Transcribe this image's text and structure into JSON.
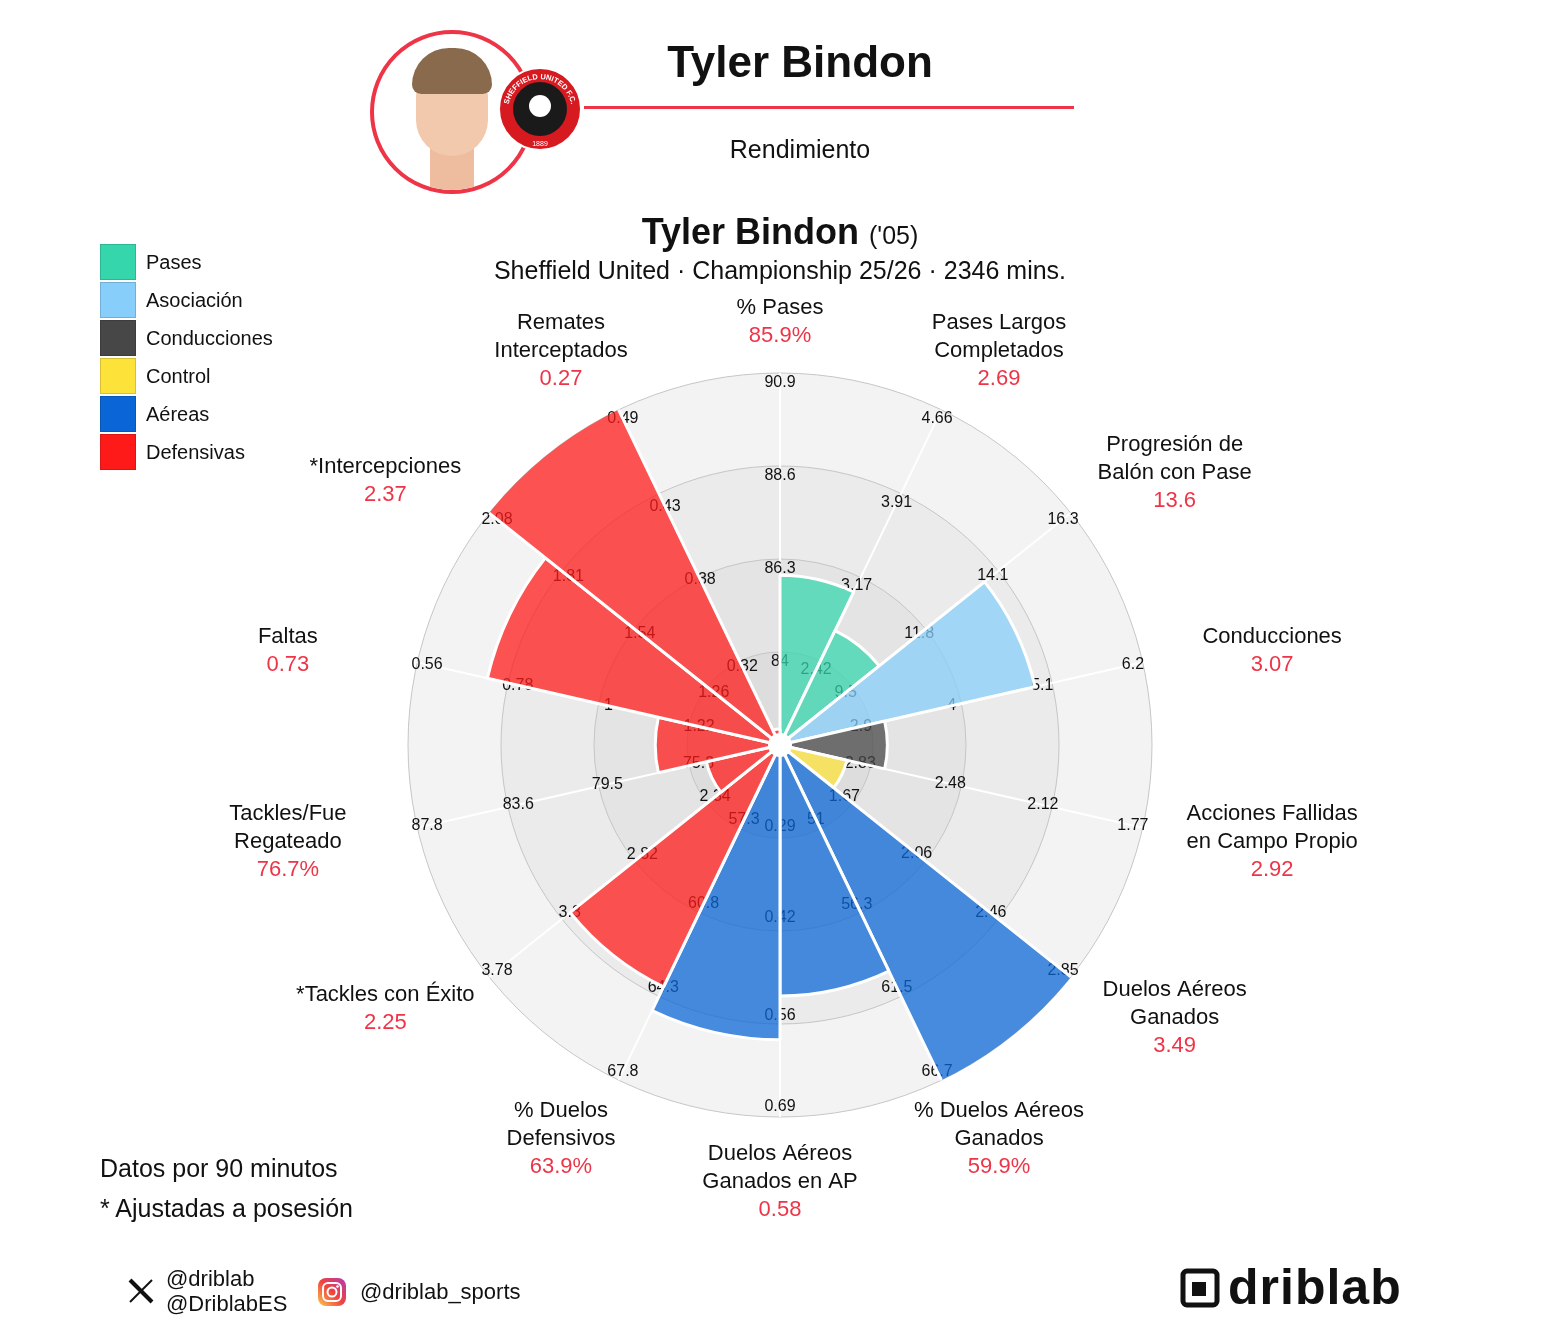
{
  "header": {
    "name": "Tyler Bindon",
    "subtitle": "Rendimiento",
    "badge": "SHEFFIELD UNITED F.C.",
    "badge_year": "1889"
  },
  "chart_data": {
    "type": "polarArea",
    "title": "Tyler Bindon",
    "title_note": "('05)",
    "subtitle": "Sheffield United · Championship 25/26 · 2346 mins.",
    "legend": "top-left",
    "groups": [
      {
        "name": "Pases",
        "color": "#36d6ad"
      },
      {
        "name": "Asociación",
        "color": "#87cefa"
      },
      {
        "name": "Conducciones",
        "color": "#474747"
      },
      {
        "name": "Control",
        "color": "#fde23a"
      },
      {
        "name": "Aéreas",
        "color": "#0a66d6"
      },
      {
        "name": "Defensivas",
        "color": "#ff1a1a"
      }
    ],
    "categories": [
      "% Pases",
      "Pases Largos Completados",
      "Progresión de Balón con Pase",
      "Conducciones",
      "Acciones Fallidas en Campo Propio",
      "Duelos Aéreos Ganados",
      "% Duelos Aéreos Ganados",
      "Duelos Aéreos Ganados en AP",
      "% Duelos Defensivos",
      "*Tackles con Éxito",
      "Tackles/Fue Regateado",
      "Faltas",
      "*Intercepciones",
      "Remates Interceptados"
    ],
    "category_groups": [
      "Pases",
      "Pases",
      "Asociación",
      "Conducciones",
      "Control",
      "Aéreas",
      "Aéreas",
      "Aéreas",
      "Defensivas",
      "Defensivas",
      "Defensivas",
      "Defensivas",
      "Defensivas",
      "Defensivas"
    ],
    "values": [
      85.9,
      2.69,
      13.6,
      3.07,
      2.92,
      3.49,
      59.9,
      0.58,
      63.9,
      2.25,
      76.7,
      0.73,
      2.37,
      0.27
    ],
    "value_labels": [
      "85.9%",
      "2.69",
      "13.6",
      "3.07",
      "2.92",
      "3.49",
      "59.9%",
      "0.58",
      "63.9%",
      "2.25",
      "76.7%",
      "0.73",
      "2.37",
      "0.27"
    ],
    "axes": [
      {
        "rlim": [
          81.7,
          90.9
        ],
        "ticks": [
          84,
          86.3,
          88.6,
          90.9
        ]
      },
      {
        "rlim": [
          1.67,
          4.66
        ],
        "ticks": [
          2.42,
          3.17,
          3.91,
          4.66
        ]
      },
      {
        "rlim": [
          7.2,
          16.3
        ],
        "ticks": [
          9.5,
          11.8,
          14.1,
          16.3
        ]
      },
      {
        "rlim": [
          1.8,
          6.2
        ],
        "ticks": [
          2.9,
          4,
          5.1,
          6.2
        ]
      },
      {
        "rlim": [
          3.18,
          1.77
        ],
        "ticks": [
          2.83,
          2.48,
          2.12,
          1.77
        ]
      },
      {
        "rlim": [
          1.28,
          2.85
        ],
        "ticks": [
          1.67,
          2.06,
          2.46,
          2.85
        ]
      },
      {
        "rlim": [
          45.8,
          66.7
        ],
        "ticks": [
          51,
          56.3,
          61.5,
          66.7
        ]
      },
      {
        "rlim": [
          0.16,
          0.69
        ],
        "ticks": [
          0.29,
          0.42,
          0.56,
          0.69
        ]
      },
      {
        "rlim": [
          53.8,
          67.8
        ],
        "ticks": [
          57.3,
          60.8,
          64.3,
          67.8
        ]
      },
      {
        "rlim": [
          1.86,
          3.78
        ],
        "ticks": [
          2.34,
          2.82,
          3.3,
          3.78
        ]
      },
      {
        "rlim": [
          71.1,
          87.8
        ],
        "ticks": [
          75.3,
          79.5,
          83.6,
          87.8
        ]
      },
      {
        "rlim": [
          1.44,
          0.56
        ],
        "ticks": [
          1.22,
          1,
          0.78,
          0.56
        ]
      },
      {
        "rlim": [
          0.98,
          2.08
        ],
        "ticks": [
          1.26,
          1.54,
          1.81,
          2.08
        ]
      },
      {
        "rlim": [
          0.26,
          0.49
        ],
        "ticks": [
          0.32,
          0.38,
          0.43,
          0.49
        ]
      }
    ],
    "notes": [
      "Datos por 90 minutos",
      "* Ajustadas a posesión"
    ]
  },
  "footer": {
    "handles_x": [
      "@driblab",
      "@DriblabES"
    ],
    "handle_instagram": "@driblab_sports",
    "brand": "driblab"
  }
}
